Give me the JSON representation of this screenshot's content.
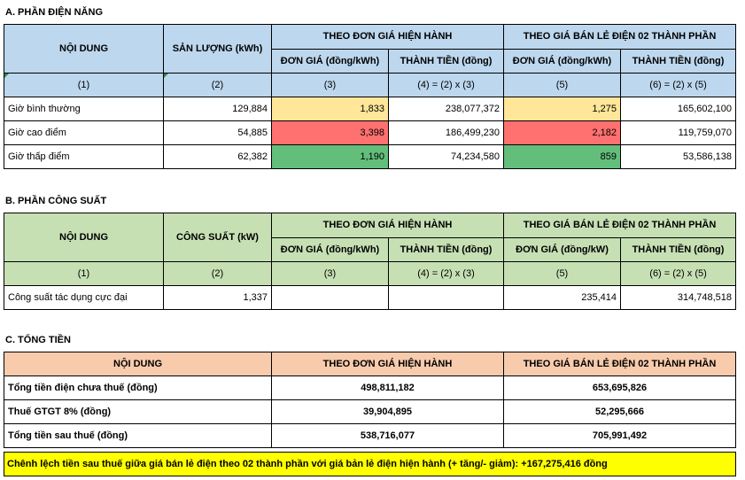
{
  "sectionA": {
    "title": "A. PHẦN ĐIỆN NĂNG",
    "h_content": "NỘI DUNG",
    "h_quantity": "SẢN LƯỢNG (kWh)",
    "h_current": "THEO ĐƠN GIÁ HIỆN HÀNH",
    "h_retail": "THEO GIÁ BÁN LẺ ĐIỆN 02 THÀNH PHẦN",
    "h_unit_price1": "ĐƠN GIÁ (đồng/kWh)",
    "h_amount1": "THÀNH TIỀN (đồng)",
    "h_unit_price2": "ĐƠN GIÁ (đồng/kWh)",
    "h_amount2": "THÀNH TIỀN (đồng)",
    "idx": [
      "(1)",
      "(2)",
      "(3)",
      "(4) = (2) x (3)",
      "(5)",
      "(6) = (2) x (5)"
    ],
    "rows": [
      {
        "label": "Giờ bình thường",
        "qty": "129,884",
        "p1": "1,833",
        "a1": "238,077,372",
        "p2": "1,275",
        "a2": "165,602,100"
      },
      {
        "label": "Giờ cao điểm",
        "qty": "54,885",
        "p1": "3,398",
        "a1": "186,499,230",
        "p2": "2,182",
        "a2": "119,759,070"
      },
      {
        "label": "Giờ thấp điểm",
        "qty": "62,382",
        "p1": "1,190",
        "a1": "74,234,580",
        "p2": "859",
        "a2": "53,586,138"
      }
    ]
  },
  "sectionB": {
    "title": "B. PHẦN CÔNG SUẤT",
    "h_content": "NỘI DUNG",
    "h_capacity": "CÔNG SUẤT (kW)",
    "h_current": "THEO ĐƠN GIÁ HIỆN HÀNH",
    "h_retail": "THEO GIÁ BÁN LẺ ĐIỆN 02 THÀNH PHẦN",
    "h_unit_price1": "ĐƠN GIÁ (đồng/kWh)",
    "h_amount1": "THÀNH TIỀN (đồng)",
    "h_unit_price2": "ĐƠN GIÁ (đồng/kW)",
    "h_amount2": "THÀNH TIỀN (đồng)",
    "idx": [
      "(1)",
      "(2)",
      "(3)",
      "(4) = (2) x (3)",
      "(5)",
      "(6) = (2) x (5)"
    ],
    "row": {
      "label": "Công suất tác dụng cực đại",
      "cap": "1,337",
      "p1": "",
      "a1": "",
      "p2": "235,414",
      "a2": "314,748,518"
    }
  },
  "sectionC": {
    "title": "C. TỔNG TIỀN",
    "h_content": "NỘI DUNG",
    "h_current": "THEO ĐƠN GIÁ HIỆN HÀNH",
    "h_retail": "THEO GIÁ BÁN LẺ ĐIỆN 02 THÀNH PHẦN",
    "rows": [
      {
        "label": "Tổng tiền điện chưa thuế (đồng)",
        "cur": "498,811,182",
        "ret": "653,695,826"
      },
      {
        "label": "Thuế GTGT 8% (đồng)",
        "cur": "39,904,895",
        "ret": "52,295,666"
      },
      {
        "label": "Tổng tiền sau thuế (đồng)",
        "cur": "538,716,077",
        "ret": "705,991,492"
      }
    ],
    "summary": "Chênh lệch tiền sau thuế giữa giá bán lẻ điện theo 02 thành phần với giá bản lẻ điện hiện hành (+ tăng/- giảm): +167,275,416 đồng"
  }
}
